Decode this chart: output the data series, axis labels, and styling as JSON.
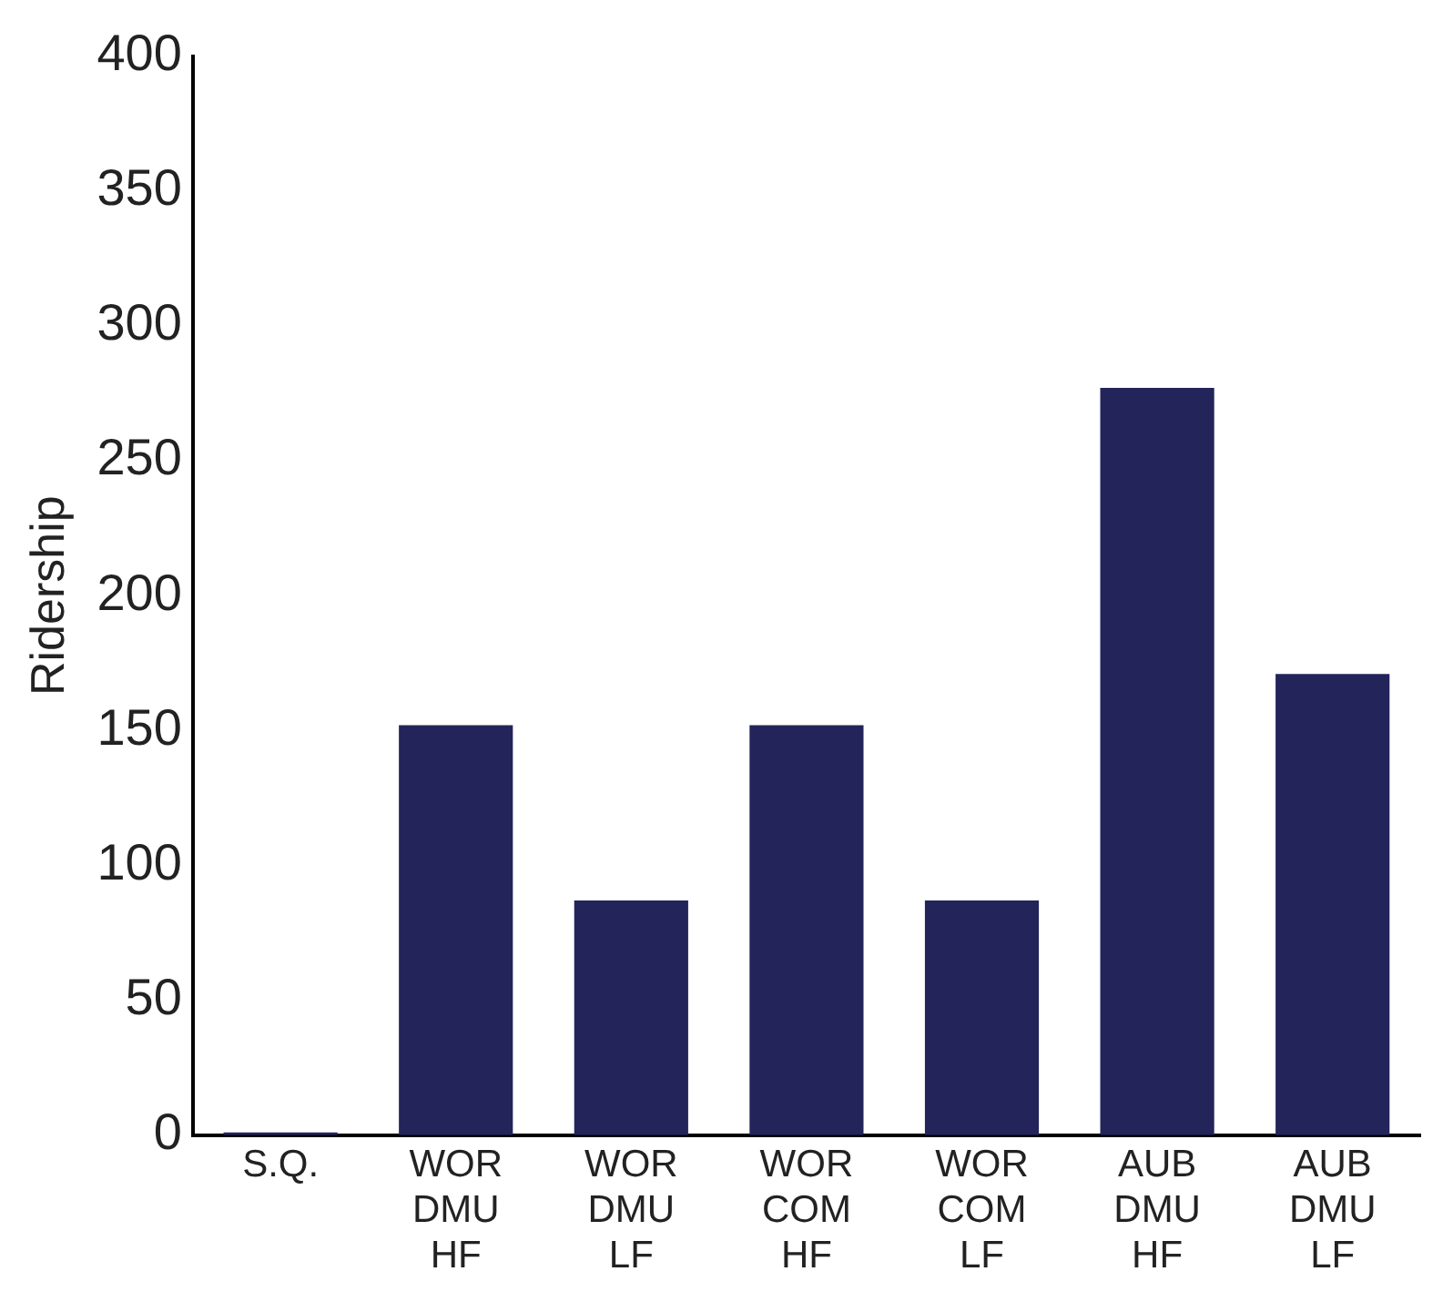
{
  "chart_data": {
    "type": "bar",
    "ylabel": "Ridership",
    "categories": [
      "S.Q.",
      "WOR\nDMU\nHF",
      "WOR\nDMU\nLF",
      "WOR\nCOM\nHF",
      "WOR\nCOM\nLF",
      "AUB\nDMU\nHF",
      "AUB\nDMU\nLF"
    ],
    "values": [
      1,
      152,
      87,
      152,
      87,
      277,
      171
    ],
    "color": "#22245a",
    "ylim": [
      0,
      400
    ],
    "yticks": [
      0,
      50,
      100,
      150,
      200,
      250,
      300,
      350,
      400
    ],
    "grid": false,
    "legend": false
  }
}
